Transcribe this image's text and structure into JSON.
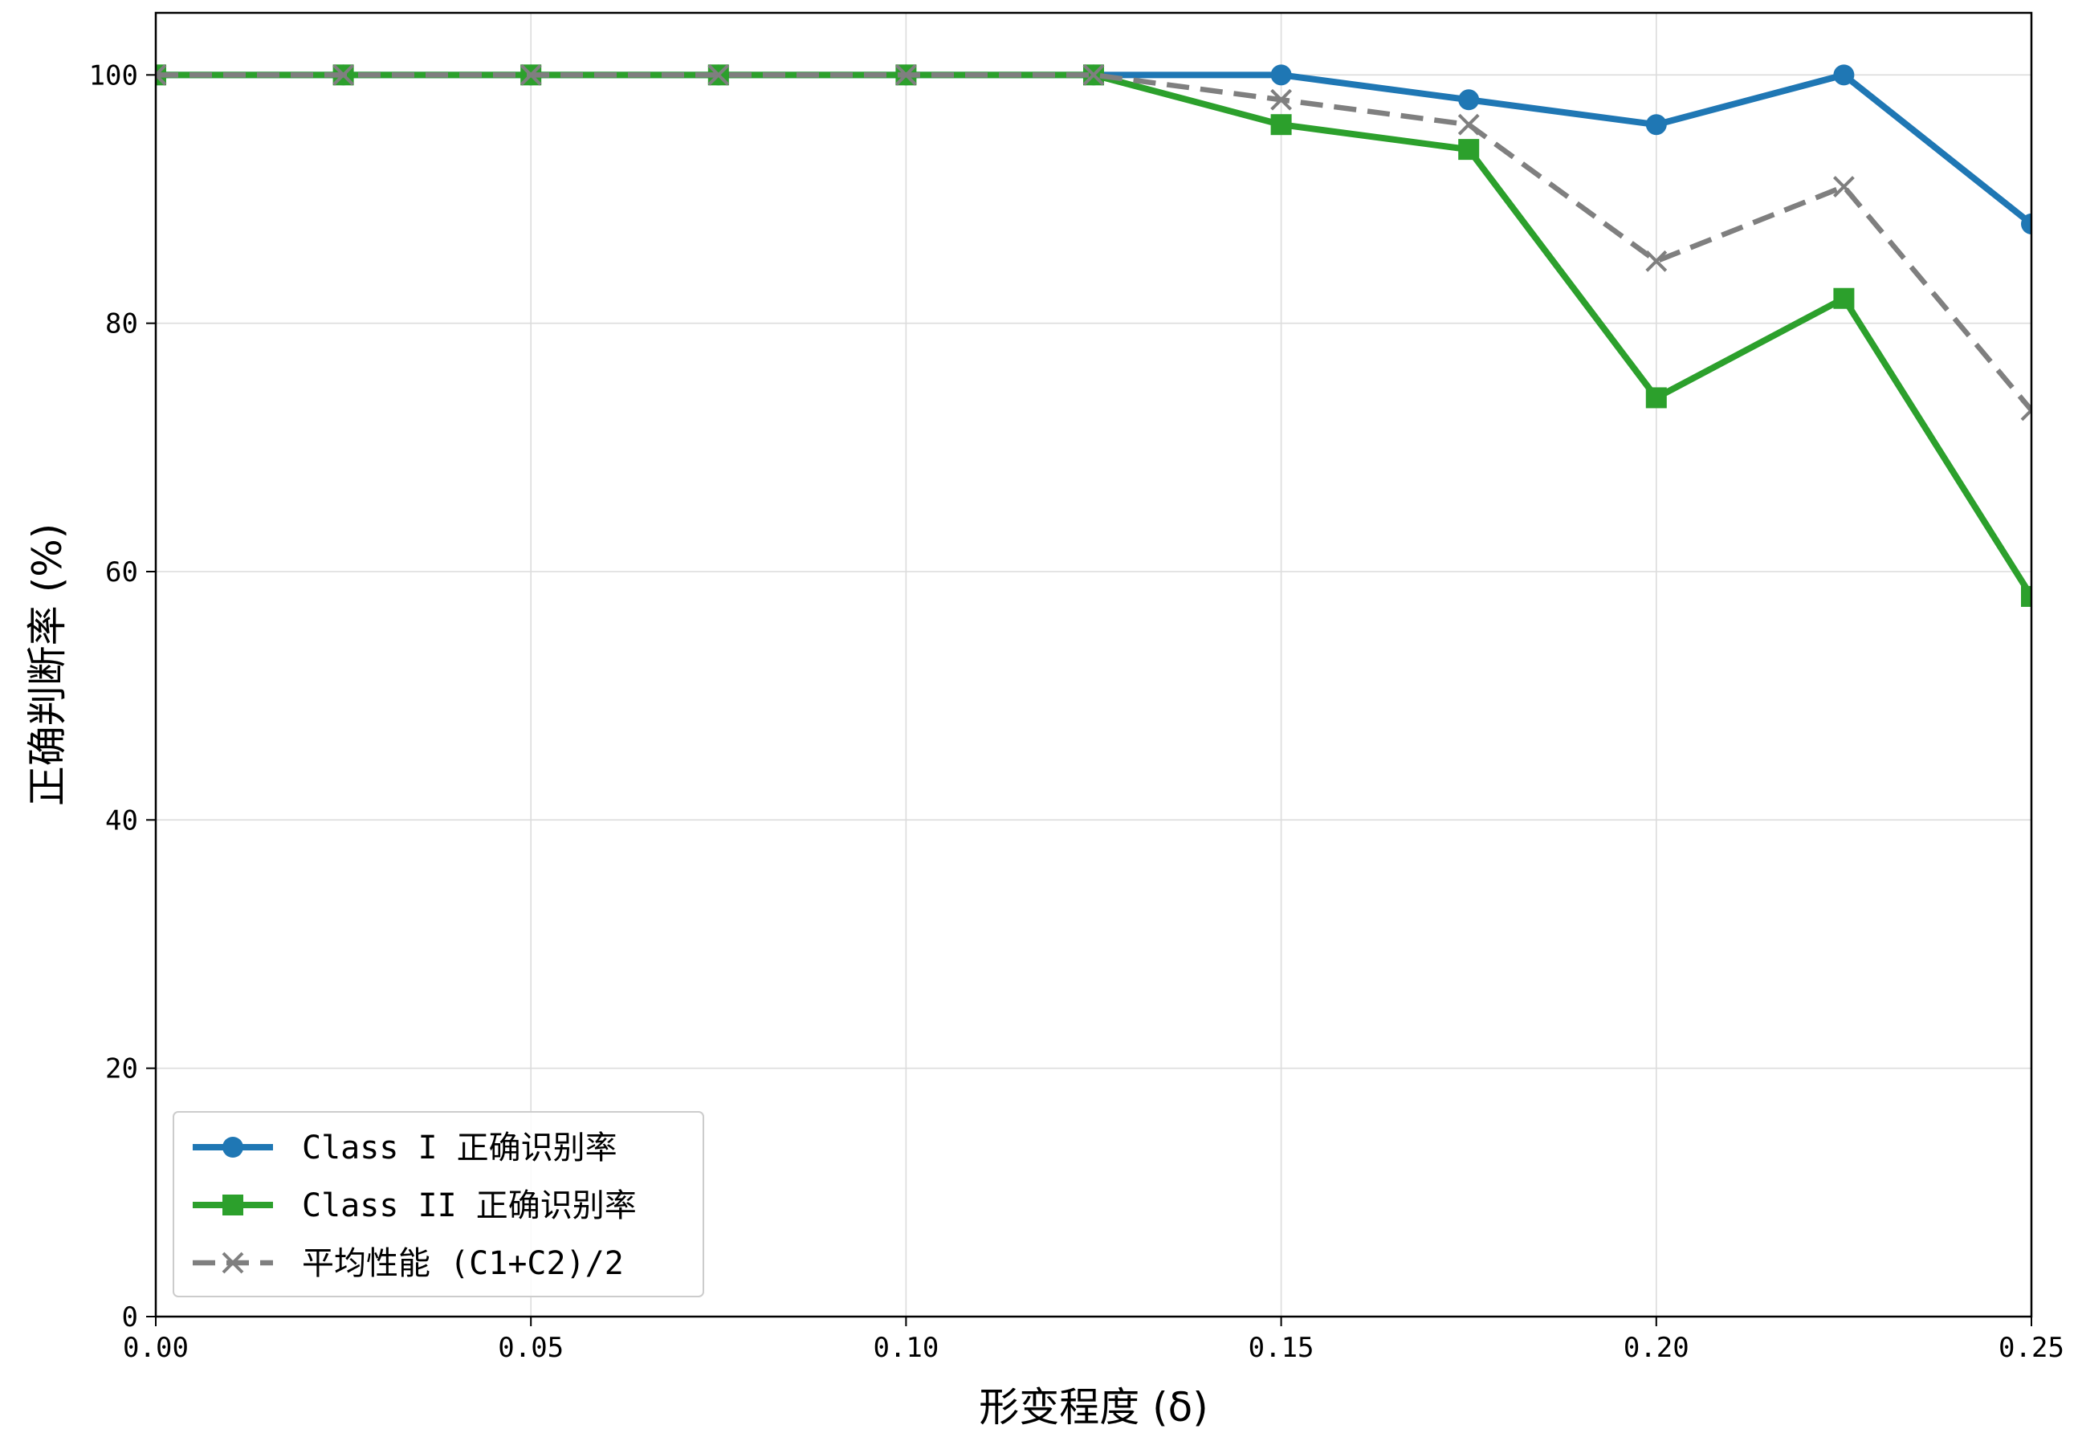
{
  "chart_data": {
    "type": "line",
    "xlabel": "形变程度 (δ)",
    "ylabel": "正确判断率 (%)",
    "xlim": [
      0,
      0.25
    ],
    "ylim": [
      0,
      105
    ],
    "grid": true,
    "legend_position": "lower-left",
    "x": [
      0,
      0.025,
      0.05,
      0.075,
      0.1,
      0.125,
      0.15,
      0.175,
      0.2,
      0.225,
      0.25
    ],
    "xticks": [
      "0.00",
      "0.05",
      "0.10",
      "0.15",
      "0.20",
      "0.25"
    ],
    "yticks": [
      "0",
      "20",
      "40",
      "60",
      "80",
      "100"
    ],
    "series": [
      {
        "name": "Class I 正确识别率",
        "color": "#1f77b4",
        "marker": "circle",
        "linestyle": "solid",
        "values": [
          100,
          100,
          100,
          100,
          100,
          100,
          100,
          98,
          96,
          100,
          88
        ]
      },
      {
        "name": "Class II 正确识别率",
        "color": "#2ca02c",
        "marker": "square",
        "linestyle": "solid",
        "values": [
          100,
          100,
          100,
          100,
          100,
          100,
          96,
          94,
          74,
          82,
          58
        ]
      },
      {
        "name": "平均性能 (C1+C2)/2",
        "color": "#7f7f7f",
        "marker": "x",
        "linestyle": "dashed",
        "values": [
          100,
          100,
          100,
          100,
          100,
          100,
          98,
          96,
          85,
          91,
          73
        ]
      }
    ]
  }
}
